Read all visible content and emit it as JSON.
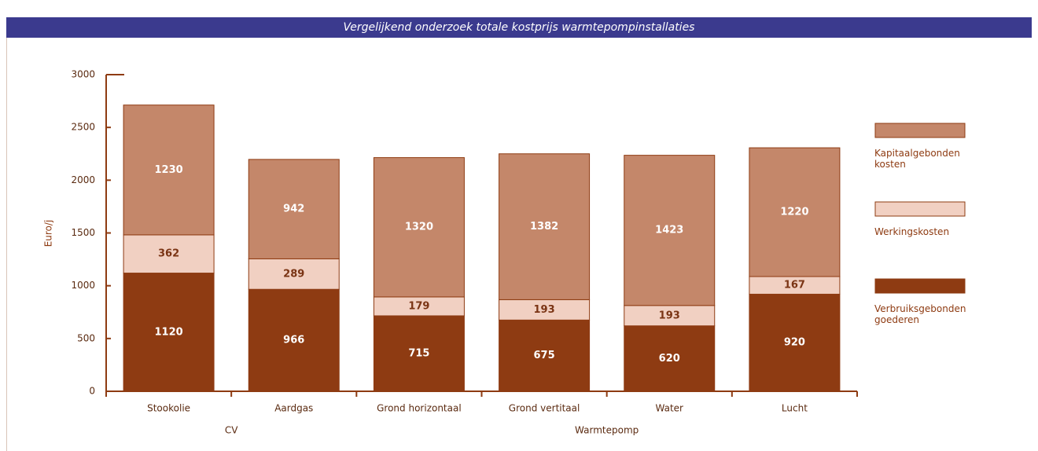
{
  "chart_data": {
    "type": "stacked_bar",
    "title": "Vergelijkend onderzoek totale kostprijs warmtepompinstallaties",
    "y_label": "Euro/j",
    "categories": [
      "Stookolie",
      "Aardgas",
      "Grond horizontaal",
      "Grond vertitaal",
      "Water",
      "Lucht"
    ],
    "groups": [
      {
        "label": "CV",
        "categories": [
          0,
          1
        ]
      },
      {
        "label": "Warmtepomp",
        "categories": [
          2,
          3,
          4,
          5
        ]
      }
    ],
    "series": [
      {
        "name": "Verbruiksgebonden goederen",
        "color": "#8e3b12",
        "label_color": "#ffffff",
        "values": [
          1120,
          966,
          715,
          675,
          620,
          920
        ]
      },
      {
        "name": "Werkingskosten",
        "color": "#f1d0c2",
        "label_color": "#7a3414",
        "values": [
          362,
          289,
          179,
          193,
          193,
          167
        ]
      },
      {
        "name": "Kapitaalgebonden kosten",
        "color": "#c4876a",
        "label_color": "#ffffff",
        "values": [
          1230,
          942,
          1320,
          1382,
          1423,
          1220
        ]
      }
    ],
    "ylim": [
      0,
      3000
    ],
    "yticks": [
      0,
      500,
      1000,
      1500,
      2000,
      2500,
      3000
    ]
  }
}
